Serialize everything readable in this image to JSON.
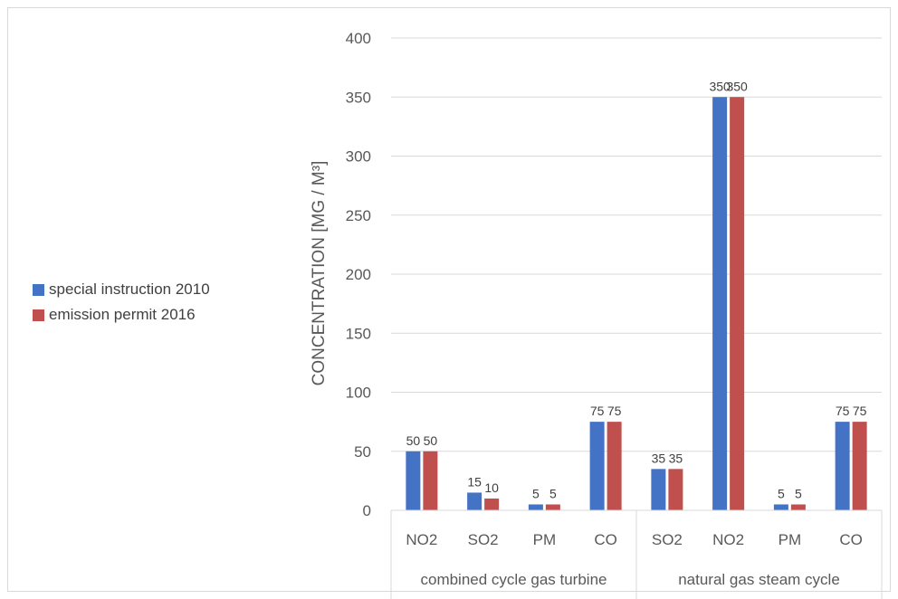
{
  "chart_data": {
    "type": "bar",
    "title": "",
    "xlabel": "",
    "ylabel": "CONCENTRATION [MG / M³]",
    "ylim": [
      0,
      400
    ],
    "yticks": [
      0,
      50,
      100,
      150,
      200,
      250,
      300,
      350,
      400
    ],
    "grid": true,
    "legend_position": "left",
    "groups": [
      {
        "label": "combined cycle gas turbine",
        "categories": [
          "NO2",
          "SO2",
          "PM",
          "CO"
        ]
      },
      {
        "label": "natural gas steam cycle",
        "categories": [
          "SO2",
          "NO2",
          "PM",
          "CO"
        ]
      }
    ],
    "categories": [
      "NO2",
      "SO2",
      "PM",
      "CO",
      "SO2",
      "NO2",
      "PM",
      "CO"
    ],
    "series": [
      {
        "name": "special instruction 2010",
        "color": "#4472c4",
        "values": [
          50,
          15,
          5,
          75,
          35,
          350,
          5,
          75
        ]
      },
      {
        "name": "emission permit 2016",
        "color": "#c0504d",
        "values": [
          50,
          10,
          5,
          75,
          35,
          350,
          5,
          75
        ]
      }
    ]
  }
}
